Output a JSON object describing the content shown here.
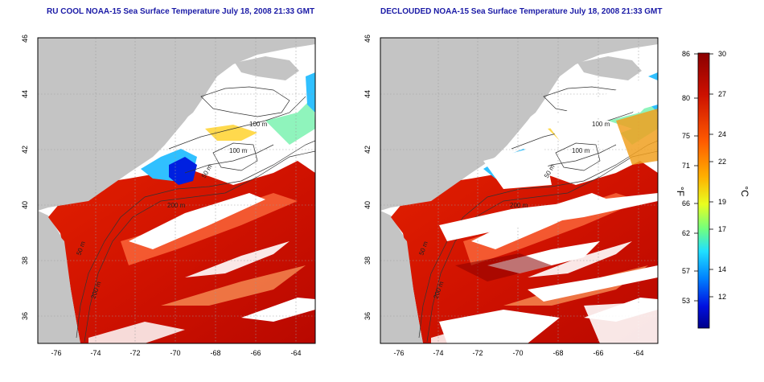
{
  "panels": [
    {
      "title": "RU COOL NOAA-15 Sea Surface Temperature July 18, 2008 21:33 GMT",
      "x_ticks": [
        "-76",
        "-74",
        "-72",
        "-70",
        "-68",
        "-66",
        "-64"
      ],
      "y_ticks": [
        "46",
        "44",
        "42",
        "40",
        "38",
        "36"
      ],
      "contour_labels": [
        "100 m",
        "100 m",
        "50 m",
        "200 m",
        "50 m",
        "200 m"
      ]
    },
    {
      "title": "DECLOUDED NOAA-15 Sea Surface Temperature July 18, 2008 21:33 GMT",
      "x_ticks": [
        "-76",
        "-74",
        "-72",
        "-70",
        "-68",
        "-66",
        "-64"
      ],
      "y_ticks": [
        "46",
        "44",
        "42",
        "40",
        "38",
        "36"
      ],
      "contour_labels": [
        "100 m",
        "100 m",
        "50 m",
        "200 m",
        "50 m",
        "200 m"
      ]
    }
  ],
  "colorbar": {
    "fahrenheit_ticks": [
      "86",
      "80",
      "75",
      "71",
      "66",
      "62",
      "57",
      "53"
    ],
    "celsius_ticks": [
      "30",
      "27",
      "24",
      "22",
      "19",
      "17",
      "14",
      "12"
    ],
    "fahrenheit_unit": "°F",
    "celsius_unit": "°C",
    "range_celsius": [
      10,
      30
    ]
  },
  "colors": {
    "land": "#c4c4c4",
    "cloud": "#ffffff",
    "title": "#1a1aa6"
  }
}
